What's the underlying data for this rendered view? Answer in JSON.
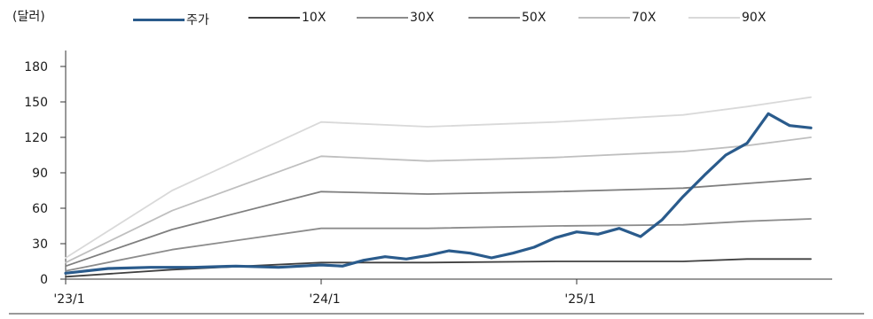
{
  "chart_data": {
    "type": "line",
    "unit_label": "(달러)",
    "yticks": [
      "0",
      "30",
      "60",
      "90",
      "120",
      "150",
      "180"
    ],
    "ylim": [
      0,
      180
    ],
    "xticks": [
      "'23/1",
      "'24/1",
      "'25/1"
    ],
    "xlim": [
      "2023-01",
      "2025-12"
    ],
    "legend_position": "top",
    "series": [
      {
        "name": "주가",
        "color": "#2a5b8c",
        "width": 3.2,
        "points": [
          [
            "2023-01",
            5
          ],
          [
            "2023-03",
            9
          ],
          [
            "2023-05",
            10
          ],
          [
            "2023-07",
            10
          ],
          [
            "2023-09",
            11
          ],
          [
            "2023-11",
            10
          ],
          [
            "2024-01",
            12
          ],
          [
            "2024-02",
            11
          ],
          [
            "2024-03",
            16
          ],
          [
            "2024-04",
            19
          ],
          [
            "2024-05",
            17
          ],
          [
            "2024-06",
            20
          ],
          [
            "2024-07",
            24
          ],
          [
            "2024-08",
            22
          ],
          [
            "2024-09",
            18
          ],
          [
            "2024-10",
            22
          ],
          [
            "2024-11",
            27
          ],
          [
            "2024-12",
            35
          ],
          [
            "2025-01",
            40
          ],
          [
            "2025-02",
            38
          ],
          [
            "2025-03",
            43
          ],
          [
            "2025-04",
            36
          ],
          [
            "2025-05",
            50
          ],
          [
            "2025-06",
            70
          ],
          [
            "2025-07",
            88
          ],
          [
            "2025-08",
            105
          ],
          [
            "2025-09",
            115
          ],
          [
            "2025-10",
            140
          ],
          [
            "2025-11",
            130
          ],
          [
            "2025-12",
            128
          ]
        ]
      },
      {
        "name": "10X",
        "color": "#404040",
        "width": 1.8,
        "points": [
          [
            "2023-01",
            2
          ],
          [
            "2023-06",
            8
          ],
          [
            "2024-01",
            14
          ],
          [
            "2024-06",
            14
          ],
          [
            "2024-12",
            15
          ],
          [
            "2025-06",
            15
          ],
          [
            "2025-09",
            17
          ],
          [
            "2025-12",
            17
          ]
        ]
      },
      {
        "name": "30X",
        "color": "#8c8c8c",
        "width": 1.8,
        "points": [
          [
            "2023-01",
            7
          ],
          [
            "2023-06",
            25
          ],
          [
            "2024-01",
            43
          ],
          [
            "2024-06",
            43
          ],
          [
            "2024-12",
            45
          ],
          [
            "2025-06",
            46
          ],
          [
            "2025-09",
            49
          ],
          [
            "2025-12",
            51
          ]
        ]
      },
      {
        "name": "50X",
        "color": "#7f7f7f",
        "width": 1.8,
        "points": [
          [
            "2023-01",
            11
          ],
          [
            "2023-06",
            42
          ],
          [
            "2024-01",
            74
          ],
          [
            "2024-06",
            72
          ],
          [
            "2024-12",
            74
          ],
          [
            "2025-06",
            77
          ],
          [
            "2025-09",
            81
          ],
          [
            "2025-12",
            85
          ]
        ]
      },
      {
        "name": "70X",
        "color": "#bfbfbf",
        "width": 1.8,
        "points": [
          [
            "2023-01",
            14
          ],
          [
            "2023-06",
            58
          ],
          [
            "2024-01",
            104
          ],
          [
            "2024-06",
            100
          ],
          [
            "2024-12",
            103
          ],
          [
            "2025-06",
            108
          ],
          [
            "2025-09",
            113
          ],
          [
            "2025-12",
            120
          ]
        ]
      },
      {
        "name": "90X",
        "color": "#d9d9d9",
        "width": 1.8,
        "points": [
          [
            "2023-01",
            18
          ],
          [
            "2023-06",
            75
          ],
          [
            "2024-01",
            133
          ],
          [
            "2024-06",
            129
          ],
          [
            "2024-12",
            133
          ],
          [
            "2025-06",
            139
          ],
          [
            "2025-09",
            146
          ],
          [
            "2025-12",
            154
          ]
        ]
      }
    ]
  }
}
